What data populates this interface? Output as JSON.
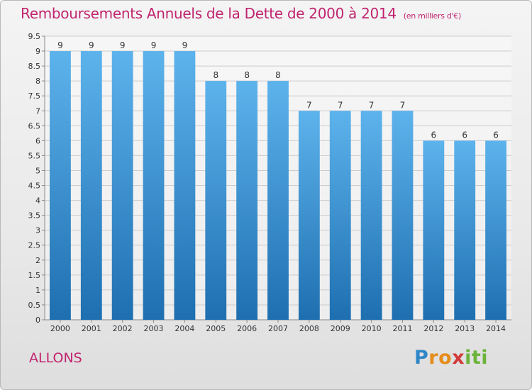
{
  "header": {
    "title": "Remboursements Annuels de la Dette de 2000 à 2014",
    "subtitle": "(en milliers d'€)"
  },
  "footer": {
    "commune": "ALLONS",
    "logo_text": [
      "P",
      "r",
      "o",
      "x",
      "i",
      "t",
      "i"
    ]
  },
  "colors": {
    "title": "#c0246e",
    "bar_top": "#5db3ec",
    "bar_bottom": "#1e6fb0",
    "grid": "#cccccc"
  },
  "chart_data": {
    "type": "bar",
    "title": "Remboursements Annuels de la Dette de 2000 à 2014",
    "subtitle": "(en milliers d'€)",
    "xlabel": "",
    "ylabel": "",
    "categories": [
      "2000",
      "2001",
      "2002",
      "2003",
      "2004",
      "2005",
      "2006",
      "2007",
      "2008",
      "2009",
      "2010",
      "2011",
      "2012",
      "2013",
      "2014"
    ],
    "values": [
      9,
      9,
      9,
      9,
      9,
      8,
      8,
      8,
      7,
      7,
      7,
      7,
      6,
      6,
      6
    ],
    "data_labels": [
      "9",
      "9",
      "9",
      "9",
      "9",
      "8",
      "8",
      "8",
      "7",
      "7",
      "7",
      "7",
      "6",
      "6",
      "6"
    ],
    "ylim": [
      0,
      9.5
    ],
    "yticks": [
      0,
      0.5,
      1,
      1.5,
      2,
      2.5,
      3,
      3.5,
      4,
      4.5,
      5,
      5.5,
      6,
      6.5,
      7,
      7.5,
      8,
      8.5,
      9,
      9.5
    ],
    "ytick_labels": [
      "0",
      "0.5",
      "1",
      "1.5",
      "2",
      "2.5",
      "3",
      "3.5",
      "4",
      "4.5",
      "5",
      "5.5",
      "6",
      "6.5",
      "7",
      "7.5",
      "8",
      "8.5",
      "9",
      "9.5"
    ],
    "grid": true
  }
}
